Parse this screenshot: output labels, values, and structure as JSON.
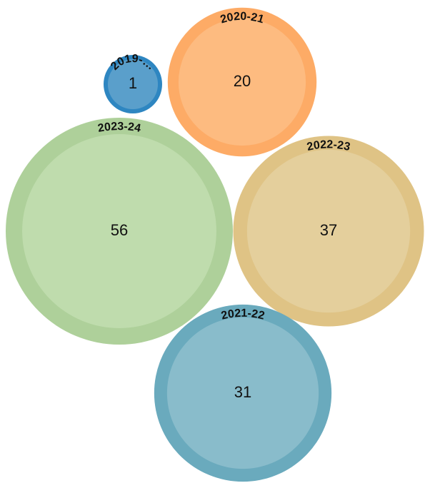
{
  "chart_data": {
    "type": "packed-bubble",
    "categories": [
      "2019-…",
      "2020-21",
      "2023-24",
      "2022-23",
      "2021-22"
    ],
    "values": [
      1,
      20,
      56,
      37,
      31
    ],
    "colors": [
      "#2e86c1",
      "#fdab66",
      "#aed09a",
      "#dfc385",
      "#6aaabd"
    ],
    "inner_colors": [
      "#5a9fcb",
      "#fdbb80",
      "#bfdcad",
      "#e4cf9c",
      "#89bccb"
    ]
  }
}
